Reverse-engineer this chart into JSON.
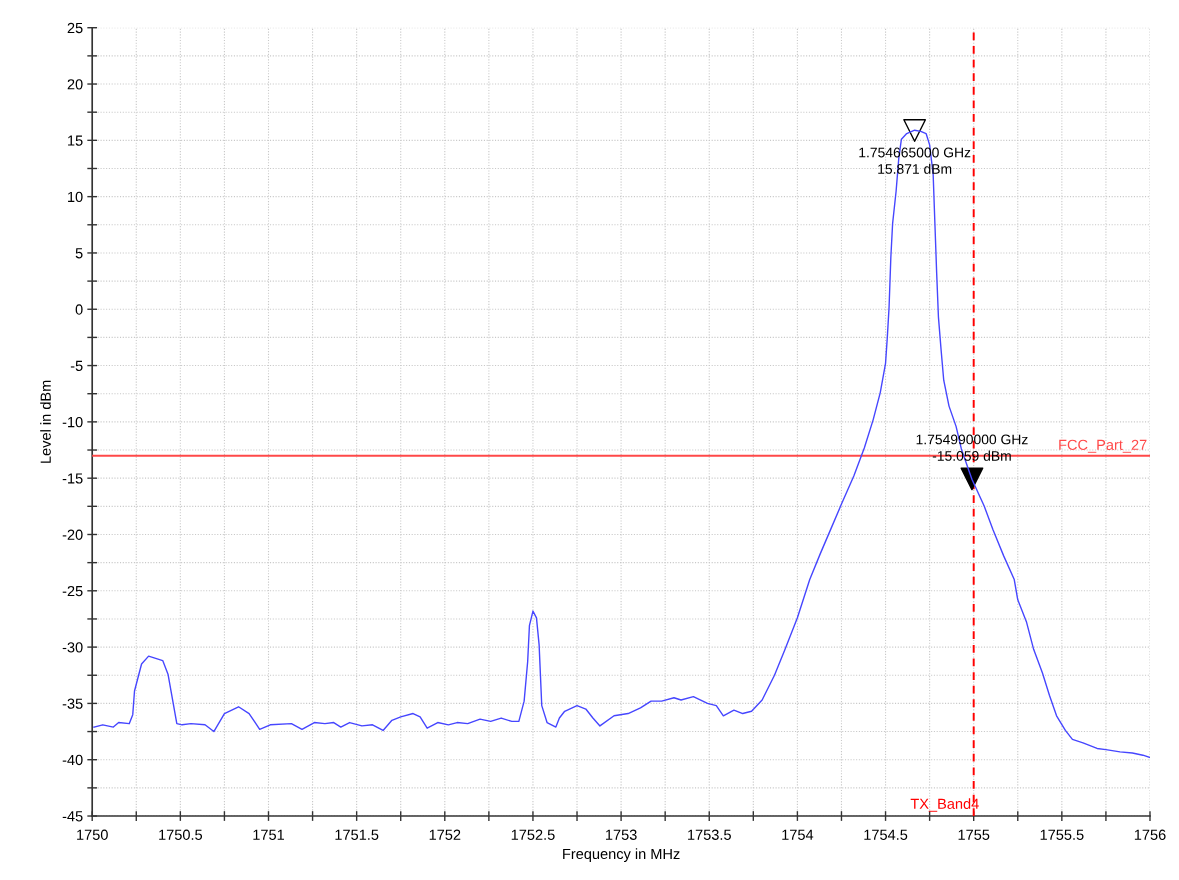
{
  "chart_data": {
    "type": "line",
    "xlabel": "Frequency in MHz",
    "ylabel": "Level in dBm",
    "xlim": [
      1750,
      1756
    ],
    "xticks": [
      1750,
      {
        "value": 1750.25,
        "label": null
      },
      1750.5,
      {
        "value": 1750.75,
        "label": null
      },
      1751,
      {
        "value": 1751.25,
        "label": null
      },
      1751.5,
      {
        "value": 1751.75,
        "label": null
      },
      1752,
      {
        "value": 1752.25,
        "label": null
      },
      1752.5,
      {
        "value": 1752.75,
        "label": null
      },
      1753,
      {
        "value": 1753.25,
        "label": null
      },
      1753.5,
      {
        "value": 1753.75,
        "label": null
      },
      1754,
      {
        "value": 1754.25,
        "label": null
      },
      1754.5,
      {
        "value": 1754.75,
        "label": null
      },
      1755,
      {
        "value": 1755.25,
        "label": null
      },
      1755.5,
      {
        "value": 1755.75,
        "label": null
      },
      1756
    ],
    "ylim": [
      -45,
      25
    ],
    "yticks": [
      25,
      {
        "value": 22.5,
        "label": null
      },
      20,
      {
        "value": 17.5,
        "label": null
      },
      15,
      {
        "value": 12.5,
        "label": null
      },
      10,
      {
        "value": 7.5,
        "label": null
      },
      5,
      {
        "value": 2.5,
        "label": null
      },
      0,
      {
        "value": -2.5,
        "label": null
      },
      -5,
      {
        "value": -7.5,
        "label": null
      },
      -10,
      {
        "value": -12.5,
        "label": null
      },
      -15,
      {
        "value": -17.5,
        "label": null
      },
      -20,
      {
        "value": -22.5,
        "label": null
      },
      -25,
      {
        "value": -27.5,
        "label": null
      },
      -30,
      {
        "value": -32.5,
        "label": null
      },
      -35,
      {
        "value": -37.5,
        "label": null
      },
      -40,
      {
        "value": -42.5,
        "label": null
      },
      -45
    ],
    "grid": true,
    "series": [
      {
        "color": "#4646ff",
        "x": [
          1750.01,
          1750.06,
          1750.12,
          1750.15,
          1750.21,
          1750.23,
          1750.24,
          1750.28,
          1750.32,
          1750.36,
          1750.4,
          1750.43,
          1750.48,
          1750.51,
          1750.56,
          1750.64,
          1750.69,
          1750.75,
          1750.83,
          1750.89,
          1750.95,
          1751.01,
          1751.13,
          1751.19,
          1751.26,
          1751.32,
          1751.37,
          1751.41,
          1751.46,
          1751.53,
          1751.59,
          1751.65,
          1751.7,
          1751.75,
          1751.82,
          1751.86,
          1751.9,
          1751.96,
          1752.02,
          1752.07,
          1752.13,
          1752.2,
          1752.26,
          1752.32,
          1752.38,
          1752.42,
          1752.45,
          1752.47,
          1752.48,
          1752.5,
          1752.52,
          1752.535,
          1752.55,
          1752.58,
          1752.63,
          1752.65,
          1752.68,
          1752.75,
          1752.8,
          1752.84,
          1752.88,
          1752.96,
          1753.04,
          1753.11,
          1753.17,
          1753.23,
          1753.3,
          1753.34,
          1753.41,
          1753.49,
          1753.54,
          1753.58,
          1753.64,
          1753.69,
          1753.74,
          1753.8,
          1753.87,
          1753.93,
          1754.0,
          1754.07,
          1754.13,
          1754.19,
          1754.25,
          1754.32,
          1754.38,
          1754.43,
          1754.47,
          1754.5,
          1754.51,
          1754.52,
          1754.53,
          1754.54,
          1754.56,
          1754.575,
          1754.59,
          1754.62,
          1754.665,
          1754.7,
          1754.73,
          1754.75,
          1754.77,
          1754.78,
          1754.79,
          1754.8,
          1754.815,
          1754.83,
          1754.86,
          1754.9,
          1754.93,
          1754.97,
          1754.99,
          1755.06,
          1755.11,
          1755.17,
          1755.23,
          1755.25,
          1755.3,
          1755.34,
          1755.39,
          1755.43,
          1755.47,
          1755.52,
          1755.56,
          1755.62,
          1755.7,
          1755.75,
          1755.83,
          1755.9,
          1755.96,
          1756.0
        ],
        "values": [
          -37.1,
          -36.9,
          -37.1,
          -36.7,
          -36.8,
          -36.0,
          -33.9,
          -31.5,
          -30.8,
          -31.0,
          -31.2,
          -32.4,
          -36.8,
          -36.9,
          -36.8,
          -36.9,
          -37.5,
          -35.9,
          -35.3,
          -35.9,
          -37.3,
          -36.9,
          -36.8,
          -37.3,
          -36.7,
          -36.8,
          -36.7,
          -37.1,
          -36.7,
          -37.0,
          -36.9,
          -37.4,
          -36.5,
          -36.2,
          -35.9,
          -36.2,
          -37.2,
          -36.7,
          -36.9,
          -36.7,
          -36.8,
          -36.4,
          -36.6,
          -36.3,
          -36.6,
          -36.6,
          -34.8,
          -31.3,
          -28.1,
          -26.8,
          -27.4,
          -29.8,
          -35.2,
          -36.7,
          -37.1,
          -36.3,
          -35.7,
          -35.2,
          -35.5,
          -36.3,
          -37.0,
          -36.1,
          -35.9,
          -35.4,
          -34.8,
          -34.8,
          -34.5,
          -34.7,
          -34.4,
          -35.0,
          -35.2,
          -36.1,
          -35.6,
          -35.9,
          -35.7,
          -34.7,
          -32.5,
          -30.2,
          -27.4,
          -24.0,
          -21.7,
          -19.5,
          -17.3,
          -14.8,
          -12.3,
          -9.8,
          -7.4,
          -4.8,
          -2.5,
          0.2,
          4.6,
          7.6,
          10.5,
          13.4,
          15.1,
          15.6,
          15.9,
          15.8,
          15.6,
          14.6,
          12.0,
          7.6,
          3.2,
          -0.7,
          -3.6,
          -6.3,
          -8.6,
          -10.4,
          -12.4,
          -14.2,
          -15.1,
          -17.5,
          -19.6,
          -21.9,
          -24.0,
          -25.8,
          -27.8,
          -30.2,
          -32.3,
          -34.3,
          -36.1,
          -37.4,
          -38.2,
          -38.5,
          -39.0,
          -39.1,
          -39.3,
          -39.4,
          -39.6,
          -39.8
        ]
      },
      {
        "type": "scatter",
        "marker": "triangle",
        "color": "#000000",
        "colors": [
          "#ffffff",
          "#000000"
        ],
        "x": [
          1754.665,
          1754.99
        ],
        "values": [
          15.871,
          -15.059
        ]
      }
    ],
    "ref_lines": [
      {
        "axis": "y",
        "value": -13,
        "label": "FCC_Part_27",
        "color": "#ff4848",
        "line_style": "solid"
      },
      {
        "axis": "x",
        "value": 1755,
        "label": "TX_Band4",
        "color": "#ff0000",
        "line_style": "dashed"
      }
    ],
    "annotations": [
      {
        "text": "1.754665000 GHz\n15.871 dBm",
        "x": 1754.665,
        "y": 15.871
      },
      {
        "text": "1.754990000 GHz\n-15.059 dBm",
        "x": 1754.99,
        "y": -15.059
      }
    ]
  }
}
